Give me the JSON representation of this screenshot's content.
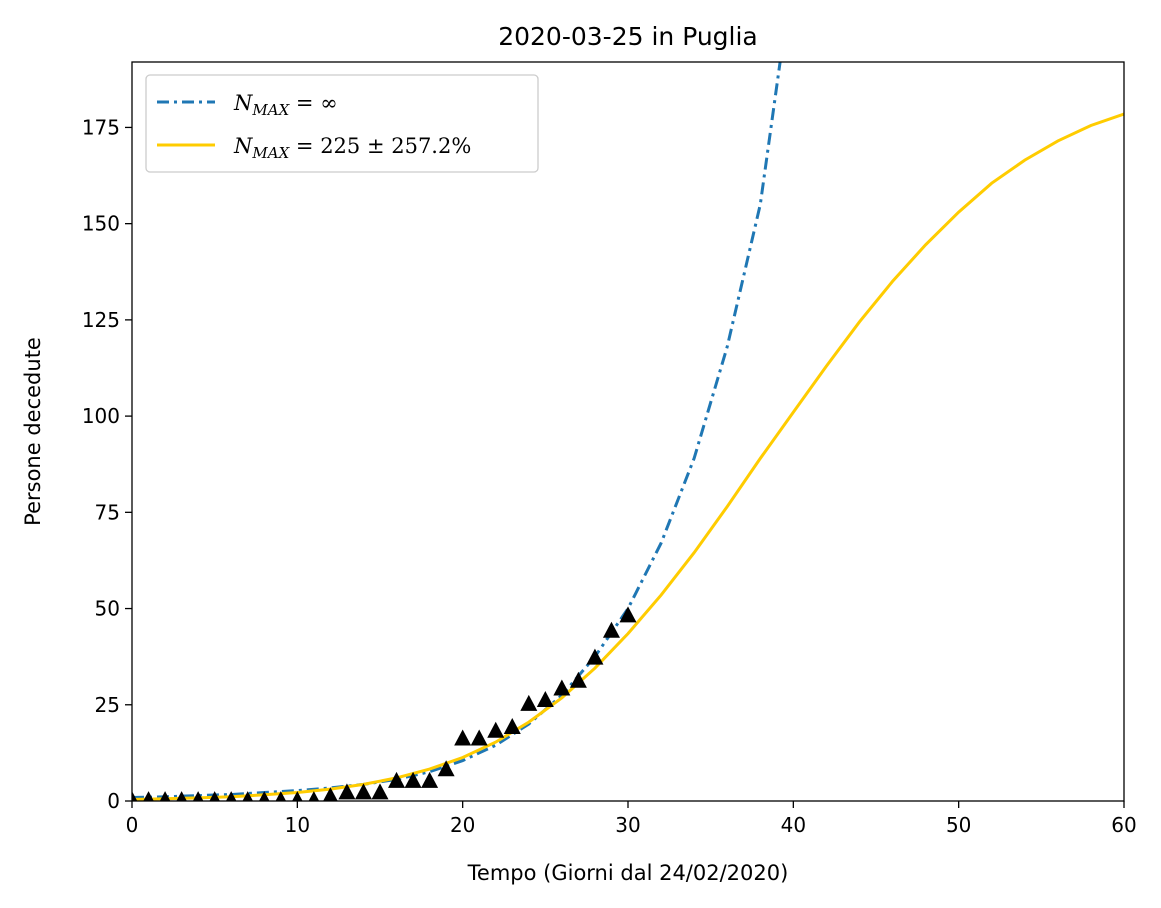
{
  "chart_data": {
    "type": "line",
    "title": "2020-03-25 in Puglia",
    "xlabel": "Tempo (Giorni dal 24/02/2020)",
    "ylabel": "Persone decedute",
    "xlim": [
      0,
      60
    ],
    "ylim": [
      0,
      192
    ],
    "xticks": [
      0,
      10,
      20,
      30,
      40,
      50,
      60
    ],
    "yticks": [
      0,
      25,
      50,
      75,
      100,
      125,
      150,
      175
    ],
    "grid": false,
    "legend_position": "top-left",
    "series": [
      {
        "name_main": "N",
        "name_sub": "MAX",
        "name_rest": " = ∞",
        "style": "dashdot",
        "color": "#1f77b4",
        "x": [
          0,
          2,
          4,
          6,
          8,
          10,
          12,
          14,
          16,
          18,
          20,
          22,
          24,
          26,
          28,
          30,
          32,
          34,
          36,
          38,
          39.2
        ],
        "y": [
          0.9,
          1.1,
          1.4,
          1.7,
          2.2,
          2.7,
          3.4,
          4.3,
          5.6,
          7.6,
          10.5,
          14.5,
          20,
          27.5,
          37.5,
          50,
          67,
          89,
          118,
          155,
          192
        ]
      },
      {
        "name_main": "N",
        "name_sub": "MAX",
        "name_rest": " = 225 ± 257.2%",
        "style": "solid",
        "color": "#ffcc00",
        "x": [
          0,
          2,
          4,
          6,
          8,
          10,
          12,
          14,
          16,
          18,
          20,
          22,
          24,
          26,
          28,
          30,
          32,
          34,
          36,
          38,
          40,
          42,
          44,
          46,
          48,
          50,
          52,
          54,
          56,
          58,
          60
        ],
        "y": [
          0.4,
          0.6,
          0.8,
          1.1,
          1.6,
          2.2,
          3.1,
          4.3,
          6,
          8.3,
          11.3,
          15.3,
          20.5,
          26.8,
          34.5,
          43.5,
          53.5,
          64.5,
          76.5,
          89,
          101,
          113,
          124.5,
          135,
          144.5,
          153,
          160.5,
          166.5,
          171.5,
          175.5,
          178.5
        ]
      },
      {
        "name": "",
        "style": "markers",
        "marker": "triangle",
        "color": "#000000",
        "x": [
          0,
          1,
          2,
          3,
          4,
          5,
          6,
          7,
          8,
          9,
          10,
          11,
          12,
          13,
          14,
          15,
          16,
          17,
          18,
          19,
          20,
          21,
          22,
          23,
          24,
          25,
          26,
          27,
          28,
          29,
          30
        ],
        "y": [
          0,
          0,
          0,
          0,
          0,
          0,
          0,
          0,
          0,
          0,
          0,
          0,
          1,
          2,
          2,
          2,
          5,
          5,
          5,
          8,
          16,
          16,
          18,
          19,
          25,
          26,
          29,
          31,
          37,
          44,
          48
        ]
      }
    ]
  }
}
